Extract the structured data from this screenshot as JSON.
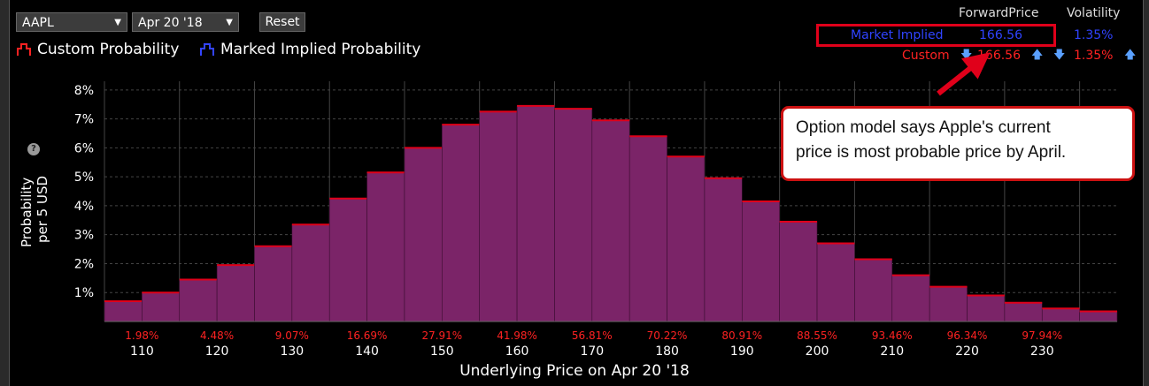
{
  "toolbar": {
    "ticker": "AAPL",
    "expiry": "Apr 20 '18",
    "reset_label": "Reset"
  },
  "legend": {
    "custom": "Custom Probability",
    "marked": "Marked Implied Probability"
  },
  "table": {
    "col_forward": "ForwardPrice",
    "col_vol": "Volatility",
    "market_label": "Market Implied",
    "market_forward": "166.56",
    "market_vol": "1.35%",
    "custom_label": "Custom",
    "custom_forward": "166.56",
    "custom_vol": "1.35%",
    "up_arrow_icon": "arrow-up-icon",
    "down_arrow_icon": "arrow-down-icon"
  },
  "callout": {
    "line1": "Option model says Apple's current",
    "line2": "price is most probable price by April."
  },
  "colors": {
    "bar_fill": "#7b2468",
    "bar_top": "#e0001a",
    "market_text": "#2f43ff",
    "custom_text": "#ff2222",
    "highlight": "#e0001a"
  },
  "chart_data": {
    "type": "bar",
    "ylabel_line1": "Probability",
    "ylabel_line2": "per 5 USD",
    "xlabel": "Underlying Price on Apr 20 '18",
    "ytick_labels": [
      "1%",
      "2%",
      "3%",
      "4%",
      "5%",
      "6%",
      "7%",
      "8%"
    ],
    "ylim": [
      0,
      8.3
    ],
    "grid": true,
    "bin_width": 5,
    "bins_start": 105,
    "values": [
      0.7,
      1.0,
      1.45,
      1.95,
      2.6,
      3.35,
      4.25,
      5.15,
      6.0,
      6.8,
      7.25,
      7.45,
      7.35,
      6.95,
      6.4,
      5.7,
      4.95,
      4.15,
      3.45,
      2.7,
      2.15,
      1.6,
      1.2,
      0.9,
      0.65,
      0.45,
      0.35
    ],
    "xtick_labels": [
      "110",
      "120",
      "130",
      "140",
      "150",
      "160",
      "170",
      "180",
      "190",
      "200",
      "210",
      "220",
      "230"
    ],
    "cum_labels": [
      "1.98%",
      "4.48%",
      "9.07%",
      "16.69%",
      "27.91%",
      "41.98%",
      "56.81%",
      "70.22%",
      "80.91%",
      "88.55%",
      "93.46%",
      "96.34%",
      "97.94%"
    ]
  }
}
